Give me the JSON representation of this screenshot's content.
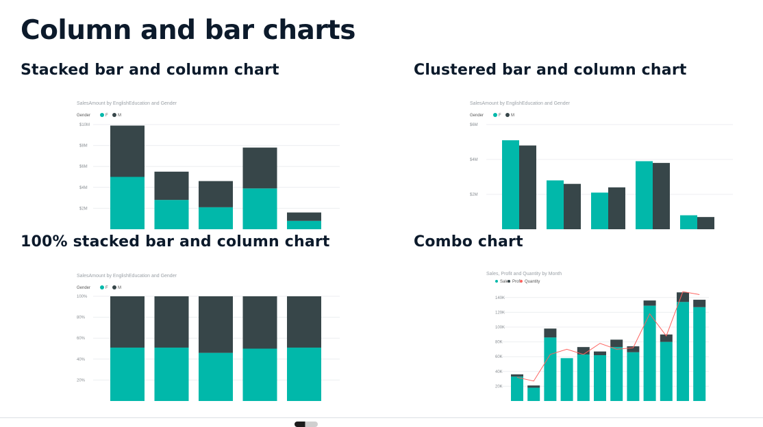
{
  "page": {
    "title": "Column and bar charts"
  },
  "sections": {
    "stacked": "Stacked bar and column chart",
    "clustered": "Clustered bar and column chart",
    "percent": "100% stacked bar and column chart",
    "combo": "Combo chart"
  },
  "colors": {
    "female": "#01b8aa",
    "male": "#374649",
    "line": "#fd625e"
  },
  "chart_data": [
    {
      "id": "stacked",
      "type": "bar",
      "stacked": true,
      "title": "SalesAmount by EnglishEducation and Gender",
      "legend_title": "Gender",
      "series": [
        {
          "name": "F",
          "values": [
            5.0,
            2.8,
            2.1,
            3.9,
            0.8
          ]
        },
        {
          "name": "M",
          "values": [
            4.9,
            2.7,
            2.5,
            3.9,
            0.8
          ]
        }
      ],
      "ylim": [
        0,
        10
      ],
      "ticks": [
        "$10M",
        "$8M",
        "$6M",
        "$4M",
        "$2M"
      ],
      "tick_values": [
        10,
        8,
        6,
        4,
        2
      ],
      "grid": true
    },
    {
      "id": "clustered",
      "type": "bar",
      "title": "SalesAmount by EnglishEducation and Gender",
      "legend_title": "Gender",
      "series": [
        {
          "name": "F",
          "values": [
            5.1,
            2.8,
            2.1,
            3.9,
            0.8
          ]
        },
        {
          "name": "M",
          "values": [
            4.8,
            2.6,
            2.4,
            3.8,
            0.7
          ]
        }
      ],
      "ylim": [
        0,
        6
      ],
      "ticks": [
        "$6M",
        "$4M",
        "$2M"
      ],
      "tick_values": [
        6,
        4,
        2
      ],
      "grid": true
    },
    {
      "id": "percent",
      "type": "bar",
      "stacked": "percent",
      "title": "SalesAmount by EnglishEducation and Gender",
      "legend_title": "Gender",
      "series": [
        {
          "name": "F",
          "values": [
            51,
            51,
            46,
            50,
            51
          ]
        },
        {
          "name": "M",
          "values": [
            49,
            49,
            54,
            50,
            49
          ]
        }
      ],
      "ylim": [
        0,
        100
      ],
      "ticks": [
        "100%",
        "80%",
        "60%",
        "40%",
        "20%"
      ],
      "tick_values": [
        100,
        80,
        60,
        40,
        20
      ],
      "grid": true
    },
    {
      "id": "combo",
      "type": "bar",
      "title": "Sales, Profit and Quantity by Month",
      "series": [
        {
          "name": "Sales",
          "values": [
            33,
            18,
            86,
            58,
            63,
            62,
            73,
            66,
            129,
            80,
            134,
            127
          ]
        },
        {
          "name": "Profit",
          "values": [
            3,
            3,
            12,
            0,
            10,
            5,
            10,
            8,
            7,
            10,
            13,
            10
          ]
        },
        {
          "name": "Quantity",
          "type": "line",
          "values": [
            32,
            27,
            63,
            70,
            63,
            78,
            70,
            72,
            118,
            88,
            148,
            144
          ]
        }
      ],
      "ylim": [
        0,
        150
      ],
      "ticks": [
        "140K",
        "120K",
        "100K",
        "80K",
        "60K",
        "40K",
        "20K"
      ],
      "tick_values": [
        140,
        120,
        100,
        80,
        60,
        40,
        20
      ],
      "grid": true
    }
  ]
}
